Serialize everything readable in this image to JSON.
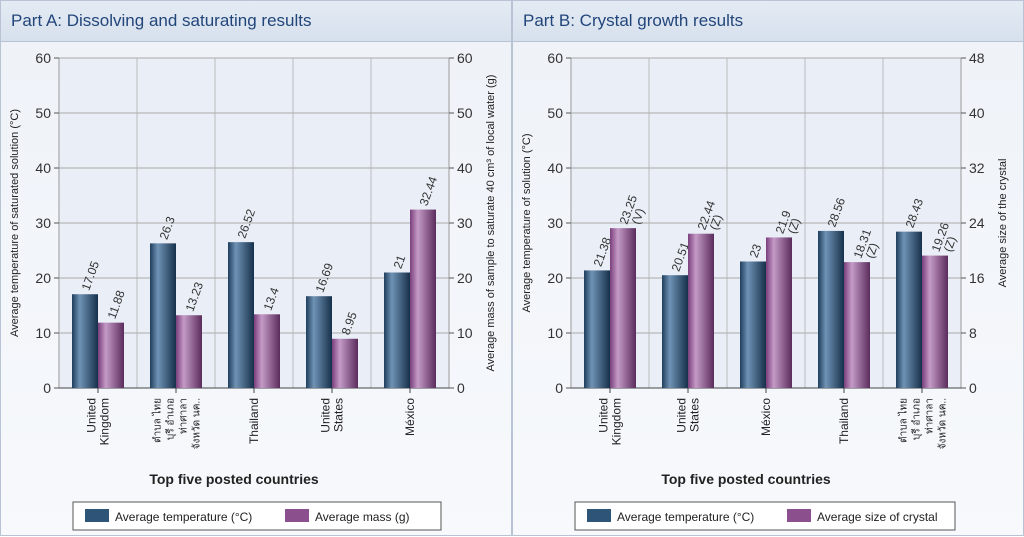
{
  "chart_data": [
    {
      "type": "bar",
      "title": "Part A: Dissolving and saturating results",
      "categories": [
        [
          "United",
          "Kingdom"
        ],
        [
          "ตำบล ไทย",
          "บุรี อำเภอ",
          "ท่าศาลา",
          "จังหวัด นค.."
        ],
        [
          "Thailand"
        ],
        [
          "United",
          "States"
        ],
        [
          "México"
        ]
      ],
      "xlabel": "Top five posted countries",
      "ylabel": "Average temperature of saturated solution (°C)",
      "y2label": "Average mass of sample to saturate 40 cm³ of local water (g)",
      "ylim": [
        0,
        60
      ],
      "y2lim": [
        0,
        60
      ],
      "yticks": [
        0,
        10,
        20,
        30,
        40,
        50,
        60
      ],
      "y2ticks": [
        0,
        10,
        20,
        30,
        40,
        50,
        60
      ],
      "series": [
        {
          "name": "Average temperature (°C)",
          "axis": "left",
          "color": "#2e5478",
          "values": [
            17.05,
            26.3,
            26.52,
            16.69,
            21
          ],
          "labels": [
            "17.05",
            "26.3",
            "26.52",
            "16.69",
            "21"
          ]
        },
        {
          "name": "Average mass (g)",
          "axis": "right",
          "color": "#8a4f8c",
          "values": [
            11.88,
            13.23,
            13.4,
            8.95,
            32.44
          ],
          "labels": [
            "11.88",
            "13.23",
            "13.4",
            "8.95",
            "32.44"
          ]
        }
      ],
      "legend": "bottom",
      "grid": true
    },
    {
      "type": "bar",
      "title": "Part B: Crystal growth results",
      "categories": [
        [
          "United",
          "Kingdom"
        ],
        [
          "United",
          "States"
        ],
        [
          "México"
        ],
        [
          "Thailand"
        ],
        [
          "ตำบล ไทย",
          "บุรี อำเภอ",
          "ท่าศาลา",
          "จังหวัด นค.."
        ]
      ],
      "xlabel": "Top five posted countries",
      "ylabel": "Average temperature of solution (°C)",
      "y2label": "Average size of the crystal",
      "ylim": [
        0,
        60
      ],
      "y2lim": [
        0,
        48
      ],
      "yticks": [
        0,
        10,
        20,
        30,
        40,
        50,
        60
      ],
      "y2ticks": [
        0,
        8,
        16,
        24,
        32,
        40,
        48
      ],
      "series": [
        {
          "name": "Average temperature (°C)",
          "axis": "left",
          "color": "#2e5478",
          "values": [
            21.38,
            20.51,
            23,
            28.56,
            28.43
          ],
          "labels": [
            "21.38",
            "20.51",
            "23",
            "28.56",
            "28.43"
          ]
        },
        {
          "name": "Average size of crystal",
          "axis": "right",
          "color": "#8a4f8c",
          "values": [
            23.25,
            22.44,
            21.9,
            18.31,
            19.26
          ],
          "labels": [
            "23.25 (V)",
            "22.44 (Z)",
            "21.9 (Z)",
            "18.31 (Z)",
            "19.26 (Z)"
          ]
        }
      ],
      "legend": "bottom",
      "grid": true
    }
  ]
}
